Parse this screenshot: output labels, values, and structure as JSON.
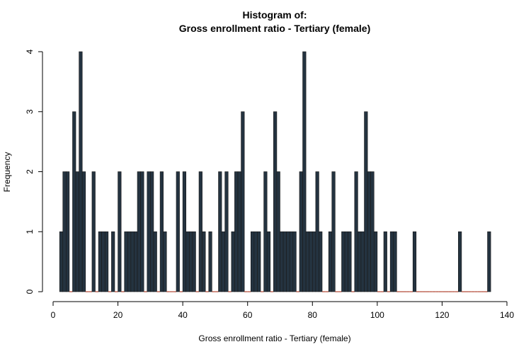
{
  "chart_data": {
    "type": "bar",
    "title_line1": "Histogram of:",
    "title_line2": "Gross enrollment ratio - Tertiary (female)",
    "xlabel": "Gross enrollment ratio - Tertiary (female)",
    "ylabel": "Frequency",
    "xlim": [
      0,
      140
    ],
    "ylim": [
      0,
      4
    ],
    "xticks": [
      0,
      20,
      40,
      60,
      80,
      100,
      120,
      140
    ],
    "yticks": [
      0,
      1,
      2,
      3,
      4
    ],
    "bin_start": 2,
    "bin_width": 1,
    "bins": [
      {
        "x": 2,
        "count": 1
      },
      {
        "x": 3,
        "count": 2
      },
      {
        "x": 4,
        "count": 2
      },
      {
        "x": 6,
        "count": 3
      },
      {
        "x": 7,
        "count": 2
      },
      {
        "x": 8,
        "count": 4
      },
      {
        "x": 9,
        "count": 2
      },
      {
        "x": 12,
        "count": 2
      },
      {
        "x": 14,
        "count": 1
      },
      {
        "x": 15,
        "count": 1
      },
      {
        "x": 16,
        "count": 1
      },
      {
        "x": 18,
        "count": 1
      },
      {
        "x": 20,
        "count": 2
      },
      {
        "x": 22,
        "count": 1
      },
      {
        "x": 23,
        "count": 1
      },
      {
        "x": 24,
        "count": 1
      },
      {
        "x": 25,
        "count": 1
      },
      {
        "x": 26,
        "count": 2
      },
      {
        "x": 27,
        "count": 2
      },
      {
        "x": 29,
        "count": 2
      },
      {
        "x": 30,
        "count": 2
      },
      {
        "x": 31,
        "count": 1
      },
      {
        "x": 33,
        "count": 2
      },
      {
        "x": 34,
        "count": 1
      },
      {
        "x": 38,
        "count": 2
      },
      {
        "x": 40,
        "count": 2
      },
      {
        "x": 41,
        "count": 1
      },
      {
        "x": 42,
        "count": 1
      },
      {
        "x": 43,
        "count": 1
      },
      {
        "x": 45,
        "count": 2
      },
      {
        "x": 46,
        "count": 1
      },
      {
        "x": 48,
        "count": 1
      },
      {
        "x": 51,
        "count": 2
      },
      {
        "x": 52,
        "count": 1
      },
      {
        "x": 53,
        "count": 2
      },
      {
        "x": 55,
        "count": 1
      },
      {
        "x": 56,
        "count": 2
      },
      {
        "x": 57,
        "count": 2
      },
      {
        "x": 58,
        "count": 3
      },
      {
        "x": 61,
        "count": 1
      },
      {
        "x": 62,
        "count": 1
      },
      {
        "x": 63,
        "count": 1
      },
      {
        "x": 65,
        "count": 2
      },
      {
        "x": 66,
        "count": 1
      },
      {
        "x": 68,
        "count": 3
      },
      {
        "x": 69,
        "count": 2
      },
      {
        "x": 70,
        "count": 1
      },
      {
        "x": 71,
        "count": 1
      },
      {
        "x": 72,
        "count": 1
      },
      {
        "x": 73,
        "count": 1
      },
      {
        "x": 74,
        "count": 1
      },
      {
        "x": 76,
        "count": 2
      },
      {
        "x": 77,
        "count": 4
      },
      {
        "x": 78,
        "count": 1
      },
      {
        "x": 79,
        "count": 1
      },
      {
        "x": 80,
        "count": 1
      },
      {
        "x": 81,
        "count": 2
      },
      {
        "x": 82,
        "count": 1
      },
      {
        "x": 85,
        "count": 1
      },
      {
        "x": 86,
        "count": 2
      },
      {
        "x": 89,
        "count": 1
      },
      {
        "x": 90,
        "count": 1
      },
      {
        "x": 91,
        "count": 1
      },
      {
        "x": 93,
        "count": 2
      },
      {
        "x": 94,
        "count": 1
      },
      {
        "x": 95,
        "count": 1
      },
      {
        "x": 96,
        "count": 3
      },
      {
        "x": 97,
        "count": 2
      },
      {
        "x": 98,
        "count": 2
      },
      {
        "x": 99,
        "count": 1
      },
      {
        "x": 102,
        "count": 1
      },
      {
        "x": 104,
        "count": 1
      },
      {
        "x": 105,
        "count": 1
      },
      {
        "x": 111,
        "count": 1
      },
      {
        "x": 125,
        "count": 1
      },
      {
        "x": 134,
        "count": 1
      }
    ],
    "bar_color": "#243340",
    "zero_marker_color": "#b0432f",
    "grid": false,
    "legend": "none"
  }
}
